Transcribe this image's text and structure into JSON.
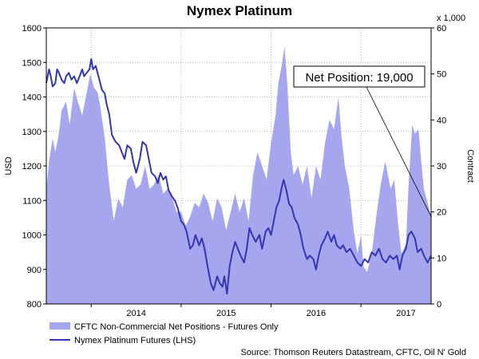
{
  "chart_data": {
    "type": "line",
    "title": "Nymex Platinum",
    "ylabel_left": "USD",
    "ylabel_right": "Contract",
    "right_multiplier": "x 1,000",
    "ylim_left": [
      800,
      1600
    ],
    "ylim_right": [
      0,
      60
    ],
    "yticks_left": [
      "800",
      "900",
      "1000",
      "1100",
      "1200",
      "1300",
      "1400",
      "1500",
      "1600"
    ],
    "yticks_right": [
      "0",
      "10",
      "20",
      "30",
      "40",
      "50",
      "60"
    ],
    "xticks": [
      "2014",
      "2015",
      "2016",
      "2017"
    ],
    "x_range": [
      2013.5,
      2017.78
    ],
    "grid": true,
    "annotation": "Net Position: 19,000",
    "annotation_target": {
      "x": 2017.78,
      "y": 19
    },
    "legend_position": "bottom-left",
    "source": "Source: Thomson Reuters Datastream, CFTC, Oil N' Gold",
    "series": [
      {
        "name": "CFTC Non-Commercial Net Positions - Futures Only",
        "kind": "area",
        "axis": "right",
        "color": "#a6a6ee",
        "points": [
          [
            2013.5,
            25
          ],
          [
            2013.53,
            31
          ],
          [
            2013.57,
            36
          ],
          [
            2013.6,
            33
          ],
          [
            2013.64,
            37
          ],
          [
            2013.67,
            42
          ],
          [
            2013.72,
            44
          ],
          [
            2013.76,
            39
          ],
          [
            2013.81,
            47
          ],
          [
            2013.85,
            44
          ],
          [
            2013.9,
            41
          ],
          [
            2013.95,
            46
          ],
          [
            2013.99,
            50
          ],
          [
            2014.03,
            47
          ],
          [
            2014.07,
            46
          ],
          [
            2014.1,
            43
          ],
          [
            2014.15,
            36
          ],
          [
            2014.2,
            26
          ],
          [
            2014.25,
            18
          ],
          [
            2014.3,
            23
          ],
          [
            2014.35,
            21
          ],
          [
            2014.4,
            27
          ],
          [
            2014.45,
            28
          ],
          [
            2014.5,
            25
          ],
          [
            2014.55,
            26
          ],
          [
            2014.6,
            30
          ],
          [
            2014.65,
            25
          ],
          [
            2014.7,
            26
          ],
          [
            2014.75,
            28
          ],
          [
            2014.8,
            24
          ],
          [
            2014.85,
            25
          ],
          [
            2014.9,
            23
          ],
          [
            2014.95,
            20
          ],
          [
            2015.0,
            20
          ],
          [
            2015.05,
            17
          ],
          [
            2015.1,
            19
          ],
          [
            2015.15,
            22
          ],
          [
            2015.2,
            21
          ],
          [
            2015.25,
            24
          ],
          [
            2015.3,
            22
          ],
          [
            2015.35,
            18
          ],
          [
            2015.4,
            23
          ],
          [
            2015.45,
            21
          ],
          [
            2015.5,
            16
          ],
          [
            2015.55,
            20
          ],
          [
            2015.6,
            24
          ],
          [
            2015.65,
            20
          ],
          [
            2015.7,
            23
          ],
          [
            2015.75,
            18
          ],
          [
            2015.8,
            28
          ],
          [
            2015.85,
            33
          ],
          [
            2015.9,
            30
          ],
          [
            2015.95,
            27
          ],
          [
            2016.0,
            35
          ],
          [
            2016.05,
            41
          ],
          [
            2016.08,
            48
          ],
          [
            2016.12,
            52
          ],
          [
            2016.15,
            56
          ],
          [
            2016.18,
            48
          ],
          [
            2016.22,
            33
          ],
          [
            2016.25,
            28
          ],
          [
            2016.3,
            30
          ],
          [
            2016.35,
            26
          ],
          [
            2016.4,
            30
          ],
          [
            2016.45,
            23
          ],
          [
            2016.5,
            30
          ],
          [
            2016.55,
            27
          ],
          [
            2016.6,
            35
          ],
          [
            2016.65,
            40
          ],
          [
            2016.7,
            38
          ],
          [
            2016.75,
            45
          ],
          [
            2016.78,
            37
          ],
          [
            2016.82,
            30
          ],
          [
            2016.87,
            25
          ],
          [
            2016.92,
            16
          ],
          [
            2016.96,
            11
          ],
          [
            2017.0,
            15
          ],
          [
            2017.03,
            8
          ],
          [
            2017.07,
            7
          ],
          [
            2017.12,
            11
          ],
          [
            2017.17,
            19
          ],
          [
            2017.22,
            26
          ],
          [
            2017.27,
            31
          ],
          [
            2017.3,
            28
          ],
          [
            2017.33,
            25
          ],
          [
            2017.37,
            27
          ],
          [
            2017.41,
            18
          ],
          [
            2017.45,
            11
          ],
          [
            2017.5,
            13
          ],
          [
            2017.53,
            26
          ],
          [
            2017.57,
            39
          ],
          [
            2017.6,
            37
          ],
          [
            2017.64,
            38
          ],
          [
            2017.67,
            31
          ],
          [
            2017.7,
            25
          ],
          [
            2017.74,
            22
          ],
          [
            2017.78,
            19
          ]
        ]
      },
      {
        "name": "Nymex Platinum Futures (LHS)",
        "kind": "line",
        "axis": "left",
        "color": "#3336b4",
        "points": [
          [
            2013.5,
            1440
          ],
          [
            2013.53,
            1480
          ],
          [
            2013.55,
            1460
          ],
          [
            2013.57,
            1430
          ],
          [
            2013.6,
            1440
          ],
          [
            2013.62,
            1480
          ],
          [
            2013.64,
            1470
          ],
          [
            2013.67,
            1450
          ],
          [
            2013.7,
            1440
          ],
          [
            2013.72,
            1460
          ],
          [
            2013.75,
            1470
          ],
          [
            2013.78,
            1450
          ],
          [
            2013.81,
            1460
          ],
          [
            2013.84,
            1440
          ],
          [
            2013.87,
            1460
          ],
          [
            2013.9,
            1480
          ],
          [
            2013.92,
            1460
          ],
          [
            2013.95,
            1470
          ],
          [
            2013.98,
            1480
          ],
          [
            2014.0,
            1510
          ],
          [
            2014.02,
            1480
          ],
          [
            2014.05,
            1490
          ],
          [
            2014.08,
            1460
          ],
          [
            2014.1,
            1440
          ],
          [
            2014.12,
            1420
          ],
          [
            2014.15,
            1410
          ],
          [
            2014.17,
            1380
          ],
          [
            2014.2,
            1350
          ],
          [
            2014.23,
            1290
          ],
          [
            2014.27,
            1270
          ],
          [
            2014.31,
            1260
          ],
          [
            2014.34,
            1240
          ],
          [
            2014.37,
            1220
          ],
          [
            2014.4,
            1260
          ],
          [
            2014.44,
            1250
          ],
          [
            2014.47,
            1210
          ],
          [
            2014.5,
            1180
          ],
          [
            2014.54,
            1220
          ],
          [
            2014.57,
            1270
          ],
          [
            2014.61,
            1260
          ],
          [
            2014.64,
            1220
          ],
          [
            2014.67,
            1180
          ],
          [
            2014.71,
            1170
          ],
          [
            2014.74,
            1150
          ],
          [
            2014.77,
            1180
          ],
          [
            2014.8,
            1160
          ],
          [
            2014.83,
            1170
          ],
          [
            2014.86,
            1130
          ],
          [
            2014.9,
            1110
          ],
          [
            2014.93,
            1100
          ],
          [
            2014.96,
            1080
          ],
          [
            2015.0,
            1040
          ],
          [
            2015.03,
            1030
          ],
          [
            2015.06,
            1010
          ],
          [
            2015.1,
            960
          ],
          [
            2015.13,
            970
          ],
          [
            2015.16,
            1000
          ],
          [
            2015.2,
            970
          ],
          [
            2015.23,
            990
          ],
          [
            2015.26,
            960
          ],
          [
            2015.3,
            900
          ],
          [
            2015.33,
            860
          ],
          [
            2015.36,
            840
          ],
          [
            2015.4,
            880
          ],
          [
            2015.43,
            860
          ],
          [
            2015.46,
            850
          ],
          [
            2015.48,
            880
          ],
          [
            2015.51,
            830
          ],
          [
            2015.54,
            910
          ],
          [
            2015.57,
            950
          ],
          [
            2015.6,
            980
          ],
          [
            2015.63,
            960
          ],
          [
            2015.66,
            940
          ],
          [
            2015.7,
            920
          ],
          [
            2015.73,
            960
          ],
          [
            2015.76,
            1020
          ],
          [
            2015.79,
            1000
          ],
          [
            2015.83,
            980
          ],
          [
            2015.87,
            1000
          ],
          [
            2015.9,
            960
          ],
          [
            2015.94,
            1010
          ],
          [
            2015.97,
            1020
          ],
          [
            2016.0,
            1000
          ],
          [
            2016.03,
            1040
          ],
          [
            2016.06,
            1080
          ],
          [
            2016.09,
            1100
          ],
          [
            2016.12,
            1140
          ],
          [
            2016.14,
            1160
          ],
          [
            2016.17,
            1130
          ],
          [
            2016.2,
            1090
          ],
          [
            2016.23,
            1080
          ],
          [
            2016.26,
            1050
          ],
          [
            2016.3,
            1030
          ],
          [
            2016.33,
            1000
          ],
          [
            2016.36,
            960
          ],
          [
            2016.4,
            930
          ],
          [
            2016.43,
            940
          ],
          [
            2016.47,
            930
          ],
          [
            2016.5,
            900
          ],
          [
            2016.53,
            940
          ],
          [
            2016.56,
            970
          ],
          [
            2016.6,
            990
          ],
          [
            2016.63,
            1010
          ],
          [
            2016.67,
            980
          ],
          [
            2016.7,
            1000
          ],
          [
            2016.73,
            970
          ],
          [
            2016.77,
            960
          ],
          [
            2016.8,
            970
          ],
          [
            2016.84,
            950
          ],
          [
            2016.88,
            960
          ],
          [
            2016.92,
            940
          ],
          [
            2016.96,
            920
          ],
          [
            2017.0,
            910
          ],
          [
            2017.04,
            930
          ],
          [
            2017.08,
            920
          ],
          [
            2017.12,
            950
          ],
          [
            2017.16,
            940
          ],
          [
            2017.2,
            960
          ],
          [
            2017.24,
            930
          ],
          [
            2017.28,
            920
          ],
          [
            2017.32,
            940
          ],
          [
            2017.36,
            930
          ],
          [
            2017.4,
            940
          ],
          [
            2017.43,
            900
          ],
          [
            2017.46,
            940
          ],
          [
            2017.5,
            960
          ],
          [
            2017.53,
            1000
          ],
          [
            2017.56,
            1010
          ],
          [
            2017.6,
            990
          ],
          [
            2017.63,
            950
          ],
          [
            2017.67,
            960
          ],
          [
            2017.7,
            940
          ],
          [
            2017.74,
            920
          ],
          [
            2017.78,
            940
          ]
        ]
      }
    ]
  }
}
